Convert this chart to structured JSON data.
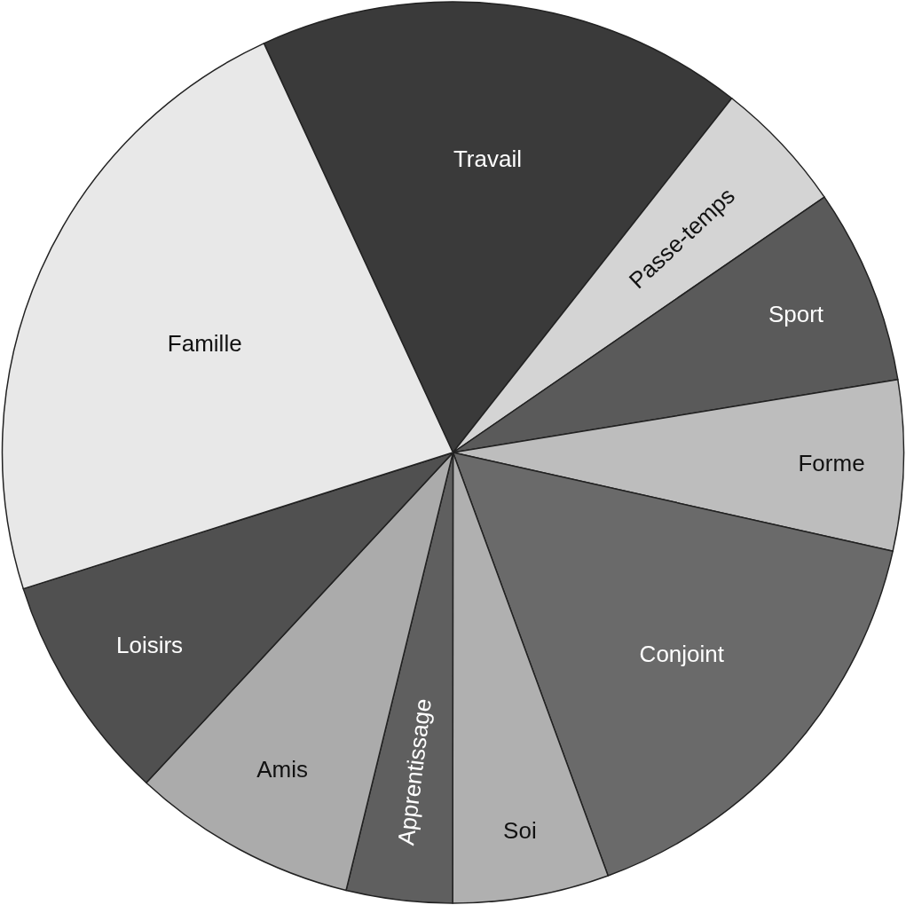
{
  "chart_data": {
    "type": "pie",
    "categories": [
      "Travail",
      "Passe-temps",
      "Sport",
      "Forme",
      "Conjoint",
      "Soi",
      "Apprentissage",
      "Amis",
      "Loisirs",
      "Famille"
    ],
    "values": [
      17.5,
      4.8,
      7.0,
      6.1,
      15.9,
      5.6,
      3.8,
      8.1,
      8.2,
      23.0
    ],
    "colors": [
      "#3a3a3a",
      "#d4d4d4",
      "#5a5a5a",
      "#bdbdbd",
      "#6a6a6a",
      "#b0b0b0",
      "#5f5f5f",
      "#ababab",
      "#505050",
      "#e8e8e8"
    ],
    "legend": false
  }
}
